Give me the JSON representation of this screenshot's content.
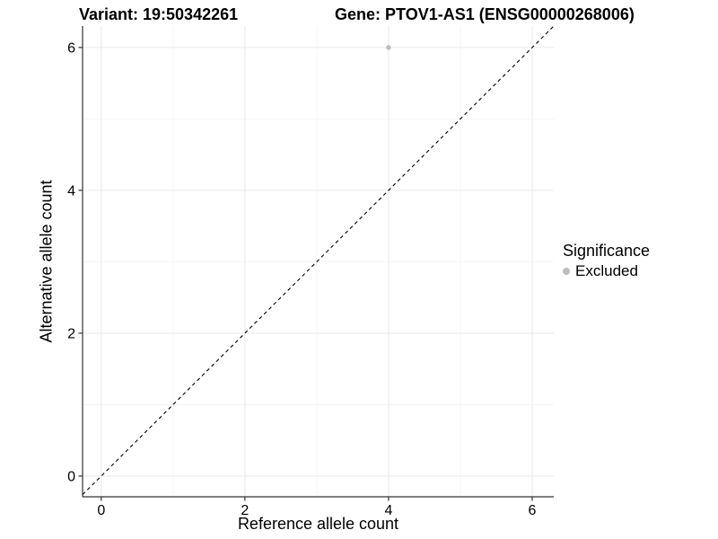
{
  "chart_data": {
    "type": "scatter",
    "title_left": "Variant: 19:50342261",
    "title_right": "Gene: PTOV1-AS1 (ENSG00000268006)",
    "xlabel": "Reference allele count",
    "ylabel": "Alternative allele count",
    "xlim": [
      -0.26,
      6.3
    ],
    "ylim": [
      -0.29,
      6.3
    ],
    "x_ticks": [
      0,
      2,
      4,
      6
    ],
    "y_ticks": [
      0,
      2,
      4,
      6
    ],
    "grid": true,
    "grid_interval": 1,
    "points": [
      {
        "x": 4,
        "y": 6,
        "group": "Excluded"
      }
    ],
    "identity_line": {
      "equation": "y = x",
      "style": "dashed",
      "color": "#000000"
    },
    "legend": {
      "position": "right",
      "title": "Significance",
      "entries": [
        {
          "label": "Excluded",
          "marker": "circle",
          "color": "#bdbdbd"
        }
      ]
    },
    "colors": {
      "point": "#bdbdbd",
      "grid_major": "#ebebeb",
      "grid_minor": "#f3f3f3",
      "axis": "#333333",
      "identity_line": "#000000",
      "text": "#000000",
      "background": "#ffffff"
    }
  }
}
